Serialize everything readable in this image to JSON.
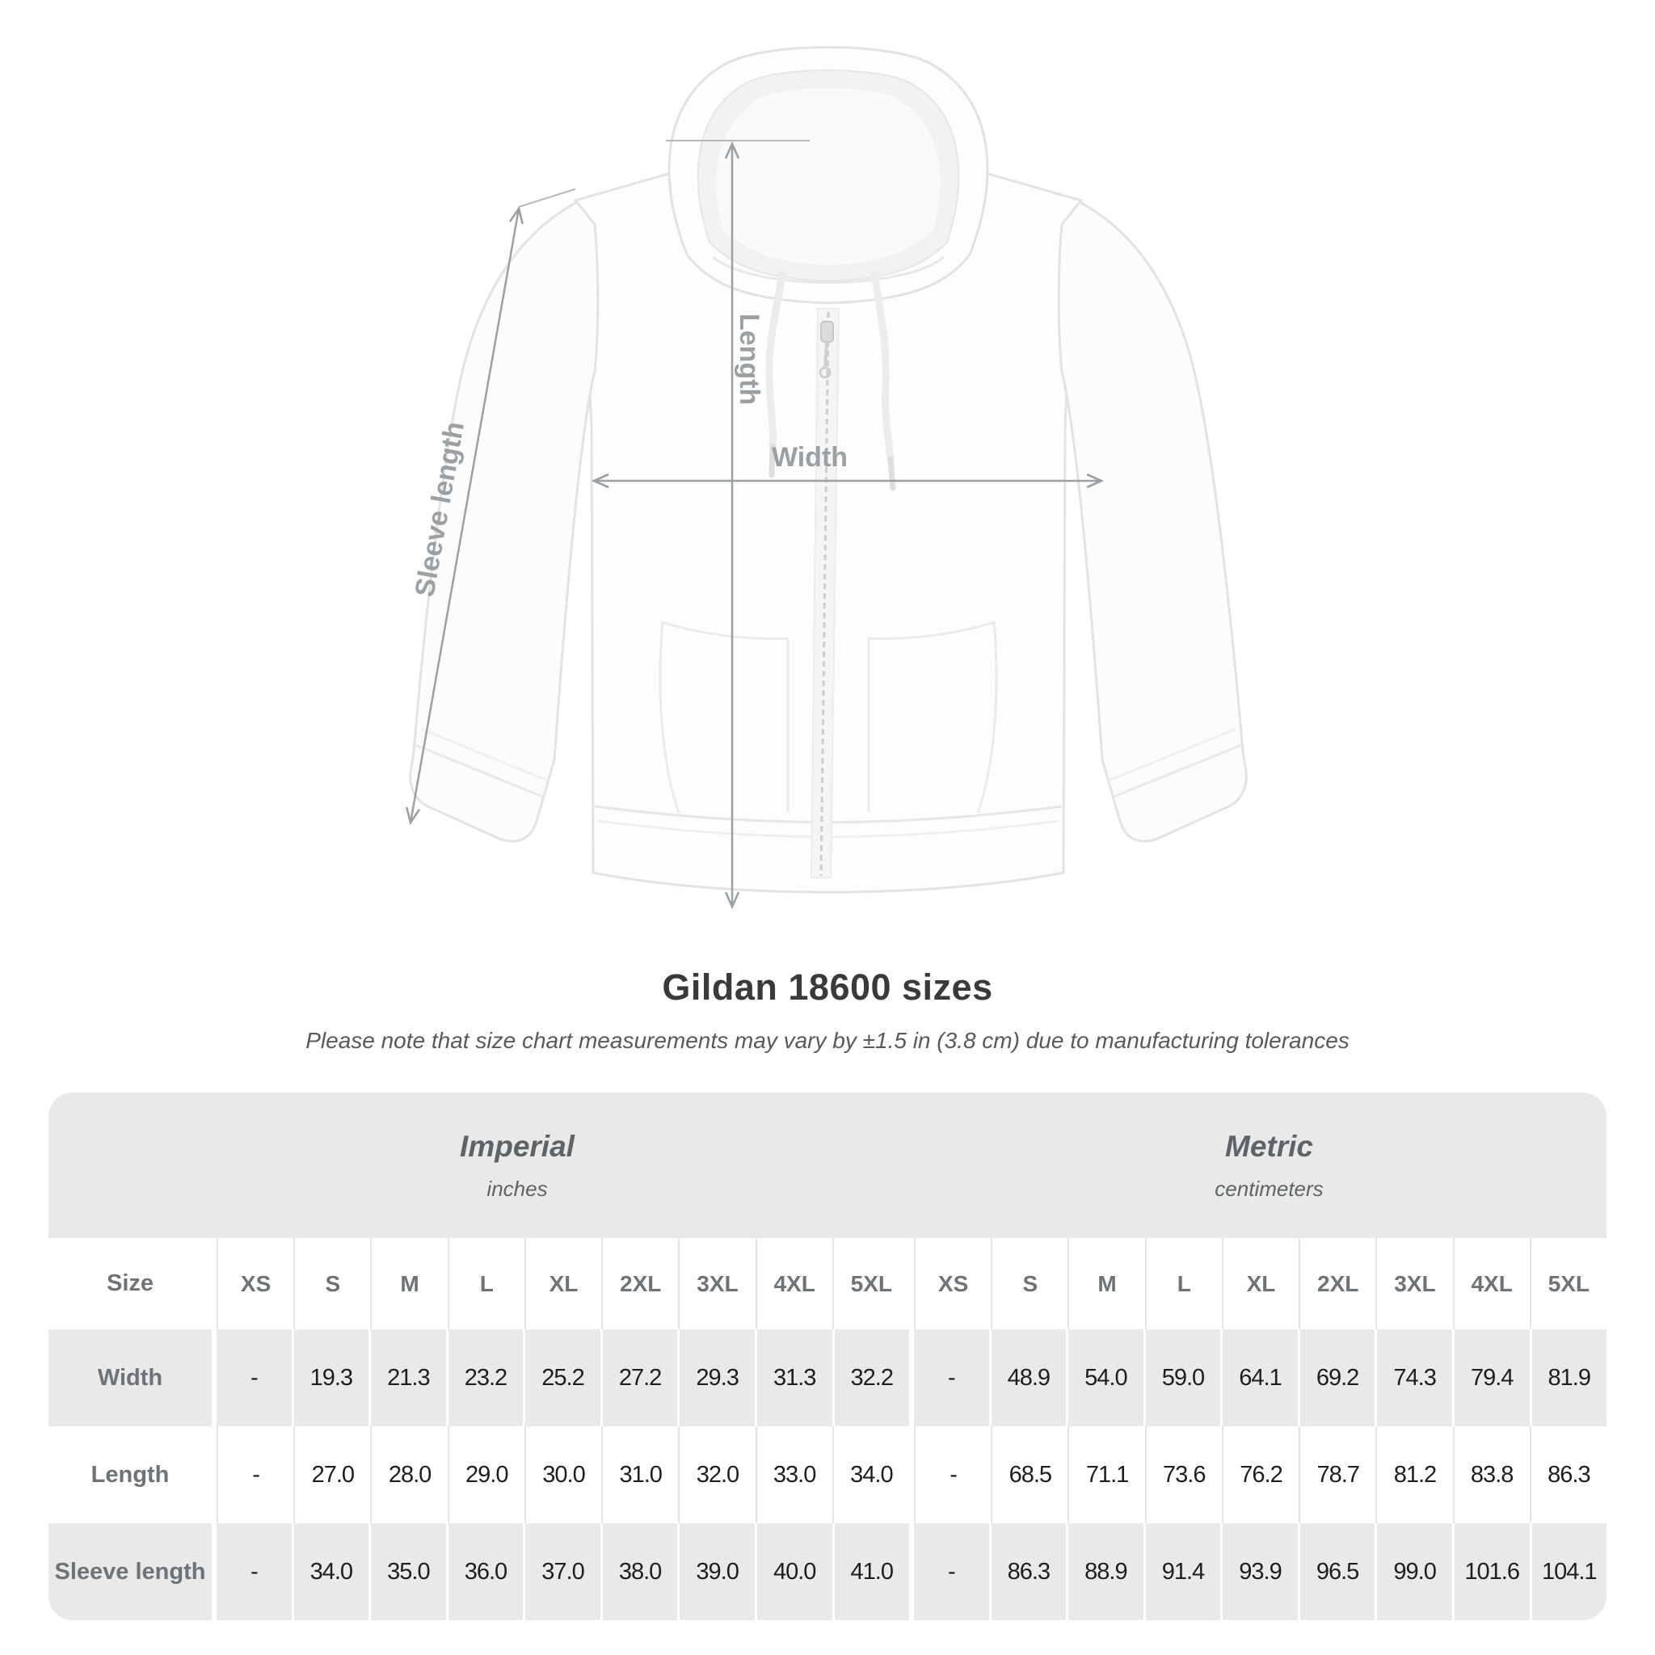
{
  "diagram": {
    "length_label": "Length",
    "width_label": "Width",
    "sleeve_label": "Sleeve length",
    "line_color": "#9aa0a3"
  },
  "chart_data": {
    "type": "table",
    "title": "Gildan 18600 sizes",
    "note": "Please note that size chart measurements may vary by ±1.5 in (3.8 cm) due to manufacturing tolerances",
    "size_header": "Size",
    "groups": [
      {
        "name": "Imperial",
        "unit": "inches",
        "columns": [
          "XS",
          "S",
          "M",
          "L",
          "XL",
          "2XL",
          "3XL",
          "4XL",
          "5XL"
        ]
      },
      {
        "name": "Metric",
        "unit": "centimeters",
        "columns": [
          "XS",
          "S",
          "M",
          "L",
          "XL",
          "2XL",
          "3XL",
          "4XL",
          "5XL"
        ]
      }
    ],
    "rows": [
      {
        "label": "Width",
        "imperial": [
          "-",
          "19.3",
          "21.3",
          "23.2",
          "25.2",
          "27.2",
          "29.3",
          "31.3",
          "32.2"
        ],
        "metric": [
          "-",
          "48.9",
          "54.0",
          "59.0",
          "64.1",
          "69.2",
          "74.3",
          "79.4",
          "81.9"
        ]
      },
      {
        "label": "Length",
        "imperial": [
          "-",
          "27.0",
          "28.0",
          "29.0",
          "30.0",
          "31.0",
          "32.0",
          "33.0",
          "34.0"
        ],
        "metric": [
          "-",
          "68.5",
          "71.1",
          "73.6",
          "76.2",
          "78.7",
          "81.2",
          "83.8",
          "86.3"
        ]
      },
      {
        "label": "Sleeve length",
        "imperial": [
          "-",
          "34.0",
          "35.0",
          "36.0",
          "37.0",
          "38.0",
          "39.0",
          "40.0",
          "41.0"
        ],
        "metric": [
          "-",
          "86.3",
          "88.9",
          "91.4",
          "93.9",
          "96.5",
          "99.0",
          "101.6",
          "104.1"
        ]
      }
    ],
    "colors": {
      "band_gray": "#e9e9e9",
      "row_white": "#ffffff",
      "value_text": "#1e1e1e",
      "label_text": "#6d7377",
      "measure_gray": "#9aa0a3"
    }
  }
}
